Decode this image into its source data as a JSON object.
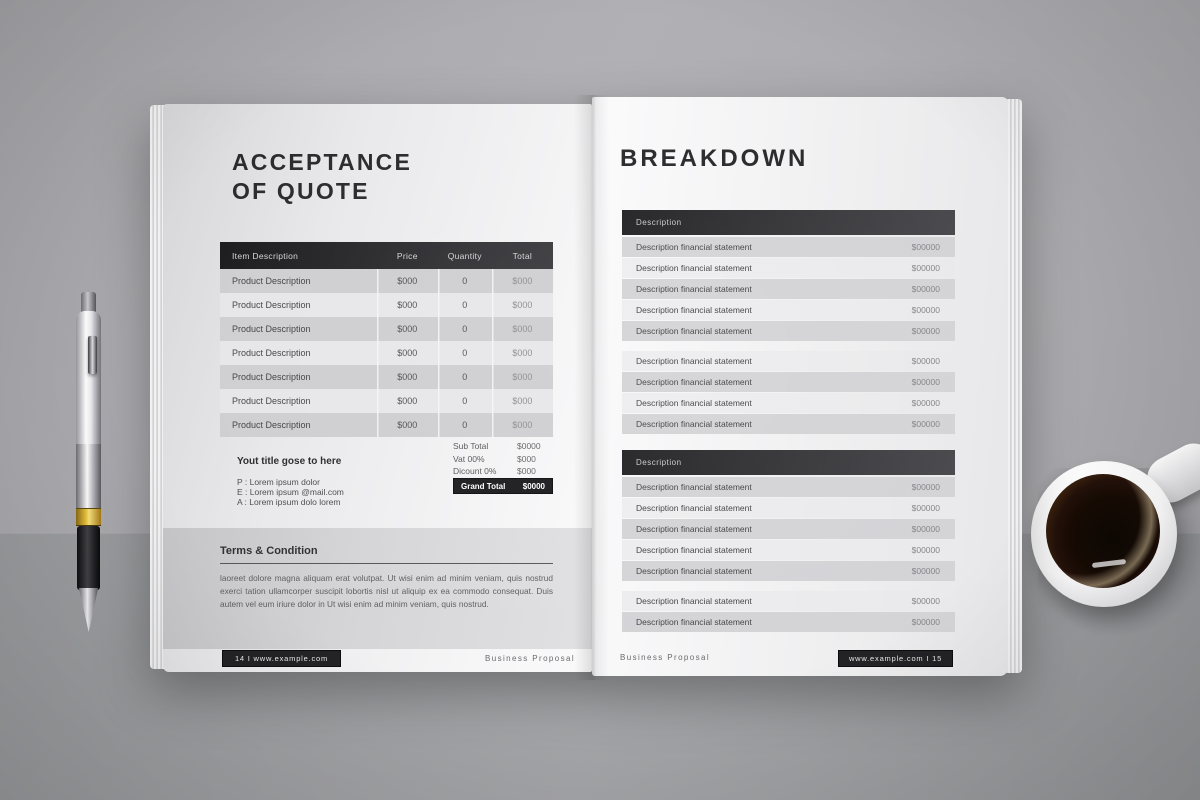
{
  "colors": {
    "dark_bar": "#232326",
    "heading_text": "#2b2b2e",
    "muted_text": "#6a6a6d",
    "coffee": "#170b04"
  },
  "left_page": {
    "title_lines": [
      "ACCEPTANCE",
      "OF QUOTE"
    ],
    "table": {
      "headers": [
        "Item Description",
        "Price",
        "Quantity",
        "Total"
      ],
      "rows": [
        {
          "desc": "Product Description",
          "price": "$000",
          "qty": "0",
          "total": "$000"
        },
        {
          "desc": "Product Description",
          "price": "$000",
          "qty": "0",
          "total": "$000"
        },
        {
          "desc": "Product Description",
          "price": "$000",
          "qty": "0",
          "total": "$000"
        },
        {
          "desc": "Product Description",
          "price": "$000",
          "qty": "0",
          "total": "$000"
        },
        {
          "desc": "Product Description",
          "price": "$000",
          "qty": "0",
          "total": "$000"
        },
        {
          "desc": "Product Description",
          "price": "$000",
          "qty": "0",
          "total": "$000"
        },
        {
          "desc": "Product Description",
          "price": "$000",
          "qty": "0",
          "total": "$000"
        }
      ]
    },
    "summary": [
      {
        "label": "Sub Total",
        "value": "$0000"
      },
      {
        "label": "Vat 00%",
        "value": "$000"
      },
      {
        "label": "Dicount 0%",
        "value": "$000"
      }
    ],
    "grand_total": {
      "label": "Grand Total",
      "value": "$0000"
    },
    "contact": {
      "title": "Yout title gose to here",
      "lines": [
        "P : Lorem ipsum dolor",
        "E : Lorem ipsum @mail.com",
        "A : Lorem ipsum dolo lorem"
      ]
    },
    "terms": {
      "heading": "Terms & Condition",
      "body": "laoreet dolore magna aliquam erat volutpat. Ut wisi enim ad minim veniam, quis nostrud exerci tation ullamcorper suscipit lobortis nisl ut aliquip ex ea commodo consequat. Duis autem vel eum iriure dolor in Ut wisi enim ad minim veniam, quis nostrud."
    },
    "footer": {
      "badge": "14 I www.example.com",
      "label": "Business Proposal"
    }
  },
  "right_page": {
    "title": "BREAKDOWN",
    "section1": {
      "header": "Description",
      "rows": [
        {
          "desc": "Description financial statement",
          "value": "$00000"
        },
        {
          "desc": "Description financial statement",
          "value": "$00000"
        },
        {
          "desc": "Description financial statement",
          "value": "$00000"
        },
        {
          "desc": "Description financial statement",
          "value": "$00000"
        },
        {
          "desc": "Description financial statement",
          "value": "$00000"
        },
        {
          "desc": "Description financial statement",
          "value": "$00000"
        },
        {
          "desc": "Description financial statement",
          "value": "$00000"
        },
        {
          "desc": "Description financial statement",
          "value": "$00000"
        },
        {
          "desc": "Description financial statement",
          "value": "$00000"
        }
      ]
    },
    "section2": {
      "header": "Description",
      "rows": [
        {
          "desc": "Description financial statement",
          "value": "$00000"
        },
        {
          "desc": "Description financial statement",
          "value": "$00000"
        },
        {
          "desc": "Description financial statement",
          "value": "$00000"
        },
        {
          "desc": "Description financial statement",
          "value": "$00000"
        },
        {
          "desc": "Description financial statement",
          "value": "$00000"
        },
        {
          "desc": "Description financial statement",
          "value": "$00000"
        },
        {
          "desc": "Description financial statement",
          "value": "$00000"
        }
      ]
    },
    "footer": {
      "label": "Business Proposal",
      "badge": "www.example.com I 15"
    }
  }
}
